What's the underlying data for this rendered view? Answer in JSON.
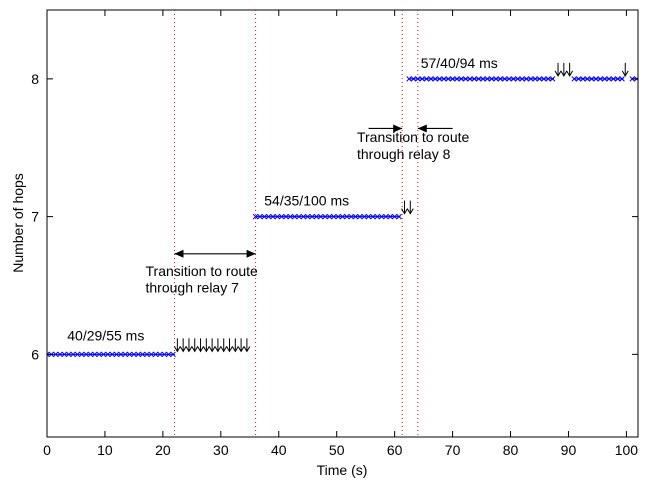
{
  "chart_data": {
    "type": "scatter",
    "xlabel": "Time (s)",
    "ylabel": "Number of hops",
    "xlim": [
      0,
      102
    ],
    "ylim": [
      5.4,
      8.5
    ],
    "xticks": [
      0,
      10,
      20,
      30,
      40,
      50,
      60,
      70,
      80,
      90,
      100
    ],
    "yticks": [
      6,
      7,
      8
    ],
    "grid": false,
    "marker_color": "#0000ff",
    "segments": [
      {
        "hops": 6,
        "x_start": 0,
        "x_end": 22,
        "step": 0.75
      },
      {
        "hops": 7,
        "x_start": 36,
        "x_end": 61,
        "step": 0.75
      },
      {
        "hops": 8,
        "x_start": 62.5,
        "x_end": 87.5,
        "step": 0.75
      },
      {
        "hops": 8,
        "x_start": 91,
        "x_end": 99.5,
        "step": 0.75
      },
      {
        "hops": 8,
        "x_start": 101,
        "x_end": 102,
        "step": 0.75
      }
    ],
    "vertical_lines": [
      22,
      36,
      61.3,
      64
    ],
    "vertical_line_color": "#ff0000",
    "packet_loss_markers": [
      {
        "hops": 6,
        "x": [
          22.5,
          23.5,
          24.5,
          25.5,
          26.5,
          27.5,
          28.5,
          29.5,
          30.5,
          31.5,
          32.5,
          33.5,
          34.5
        ]
      },
      {
        "hops": 7,
        "x": [
          61.7,
          62.7
        ]
      },
      {
        "hops": 8,
        "x": [
          88.2,
          89.2,
          90.2,
          99.8
        ]
      }
    ],
    "annotations": [
      {
        "id": "label-6",
        "text": "40/29/55 ms",
        "x": 3.5,
        "y": 6.1
      },
      {
        "id": "label-7",
        "text": "54/35/100 ms",
        "x": 37.5,
        "y": 7.08
      },
      {
        "id": "label-8",
        "text": "57/40/94 ms",
        "x": 64.5,
        "y": 8.08
      },
      {
        "id": "transition-7-line1",
        "text": "Transition to route",
        "x": 17,
        "y": 6.57
      },
      {
        "id": "transition-7-line2",
        "text": "through relay 7",
        "x": 17,
        "y": 6.45
      },
      {
        "id": "transition-8-line1",
        "text": "Transition to route",
        "x": 53.5,
        "y": 7.54
      },
      {
        "id": "transition-8-line2",
        "text": "through relay 8",
        "x": 53.5,
        "y": 7.42
      }
    ],
    "arrows": [
      {
        "type": "double",
        "x1": 22,
        "x2": 36,
        "y": 6.73
      },
      {
        "type": "right",
        "x1": 55.5,
        "x2": 61.3,
        "y": 7.64
      },
      {
        "type": "left",
        "x1": 70,
        "x2": 64,
        "y": 7.64
      }
    ]
  }
}
